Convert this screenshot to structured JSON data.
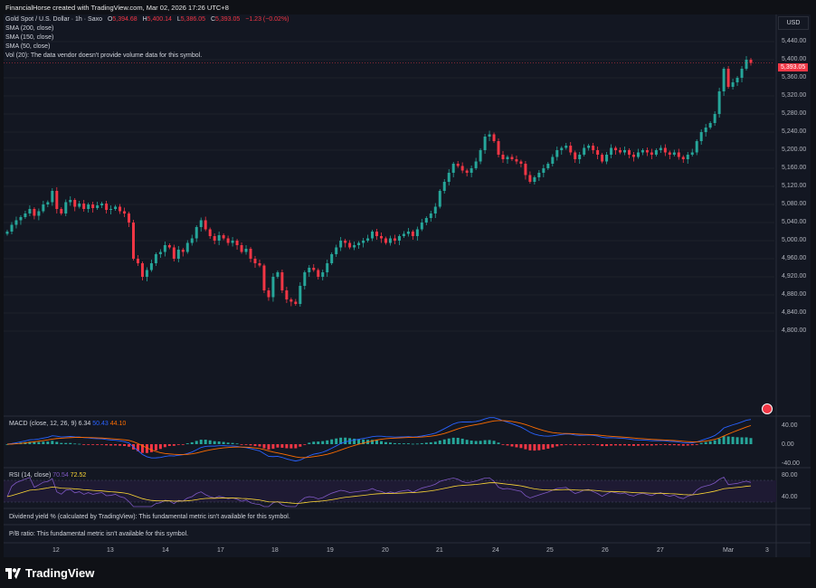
{
  "credit": "FinancialHorse created with TradingView.com, Mar 02, 2026 17:26 UTC+8",
  "legend": {
    "symbol": "Gold Spot / U.S. Dollar · 1h · Saxo",
    "o_label": "O",
    "o": "5,394.68",
    "h_label": "H",
    "h": "5,400.14",
    "l_label": "L",
    "l": "5,386.05",
    "c_label": "C",
    "c": "5,393.05",
    "chg": "−1.23 (−0.02%)",
    "sma200": "SMA (200, close)",
    "sma150": "SMA (150, close)",
    "sma50": "SMA (50, close)",
    "vol": "Vol (20): The data vendor doesn't provide volume data for this symbol."
  },
  "currency": "USD",
  "price_axis": [
    "5,440.00",
    "5,400.00",
    "5,360.00",
    "5,320.00",
    "5,280.00",
    "5,240.00",
    "5,200.00",
    "5,160.00",
    "5,120.00",
    "5,080.00",
    "5,040.00",
    "5,000.00",
    "4,960.00",
    "4,920.00",
    "4,880.00",
    "4,840.00",
    "4,800.00"
  ],
  "last_price": "5,393.05",
  "macd": {
    "label": "MACD (close, 12, 26, 9)",
    "hist": "6.34",
    "macd": "50.43",
    "signal": "44.10",
    "axis": [
      "40.00",
      "0.00",
      "-40.00"
    ]
  },
  "rsi": {
    "label": "RSI (14, close)",
    "rsi": "70.54",
    "ma": "72.52",
    "axis": [
      "80.00",
      "40.00"
    ]
  },
  "dividend_notice": "Dividend yield % (calculated by TradingView): This fundamental metric isn't available for this symbol.",
  "pb_notice": "P/B ratio: This fundamental metric isn't available for this symbol.",
  "time_axis": [
    "12",
    "13",
    "14",
    "17",
    "18",
    "19",
    "20",
    "21",
    "24",
    "25",
    "26",
    "27",
    "Mar",
    "3"
  ],
  "brand": "TradingView",
  "colors": {
    "up": "#26a69a",
    "down": "#f23645",
    "bg": "#131722",
    "macd": "#2962ff",
    "signal": "#ff6d00",
    "rsi": "#7e57c2",
    "rsi_ma": "#fdd835"
  },
  "chart_data": {
    "type": "candlestick",
    "price_range": [
      4800,
      5440
    ],
    "closes": [
      5020,
      5035,
      5045,
      5052,
      5060,
      5070,
      5055,
      5065,
      5080,
      5085,
      5110,
      5070,
      5060,
      5085,
      5090,
      5075,
      5082,
      5070,
      5080,
      5072,
      5078,
      5082,
      5068,
      5070,
      5075,
      5065,
      5060,
      5040,
      4960,
      4950,
      4920,
      4935,
      4950,
      4970,
      4975,
      4990,
      4985,
      4960,
      4980,
      4975,
      4995,
      5005,
      5030,
      5045,
      5025,
      5010,
      5000,
      5012,
      5005,
      4995,
      5000,
      4990,
      4975,
      4982,
      4960,
      4950,
      4945,
      4890,
      4875,
      4920,
      4930,
      4890,
      4870,
      4865,
      4860,
      4900,
      4930,
      4940,
      4935,
      4920,
      4930,
      4950,
      4970,
      4985,
      5000,
      4995,
      4985,
      4990,
      4995,
      5000,
      5005,
      5020,
      5010,
      5005,
      4995,
      5005,
      5000,
      5010,
      5015,
      5020,
      5010,
      5025,
      5040,
      5050,
      5060,
      5075,
      5110,
      5130,
      5150,
      5170,
      5165,
      5155,
      5150,
      5160,
      5175,
      5200,
      5230,
      5235,
      5220,
      5190,
      5180,
      5185,
      5180,
      5175,
      5170,
      5145,
      5130,
      5140,
      5150,
      5160,
      5170,
      5185,
      5200,
      5205,
      5210,
      5195,
      5180,
      5190,
      5205,
      5210,
      5200,
      5190,
      5175,
      5190,
      5205,
      5200,
      5195,
      5200,
      5190,
      5185,
      5195,
      5200,
      5195,
      5190,
      5200,
      5205,
      5195,
      5190,
      5195,
      5185,
      5180,
      5190,
      5195,
      5220,
      5240,
      5250,
      5260,
      5280,
      5330,
      5380,
      5340,
      5350,
      5360,
      5380,
      5400,
      5393
    ]
  }
}
